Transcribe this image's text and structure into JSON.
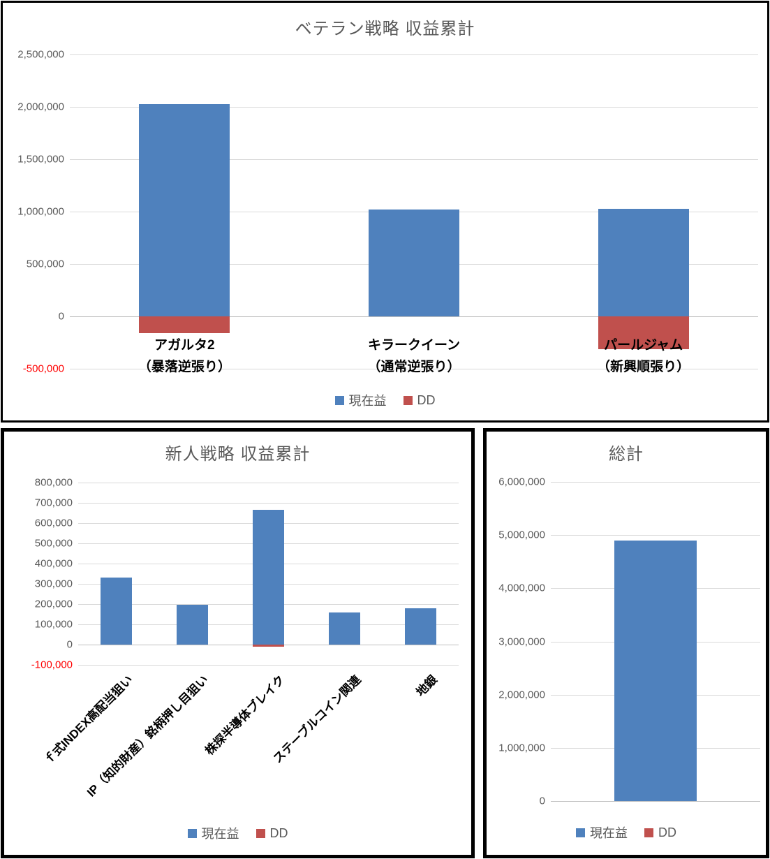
{
  "colors": {
    "profit": "#4F81BD",
    "dd": "#C0504D",
    "grid": "#D9D9D9",
    "axis": "#BFBFBF",
    "tick_text": "#595959",
    "negative_tick": "#FF0000",
    "title_text": "#595959",
    "category_text": "#000000",
    "chart_border": "#000000",
    "background": "#FFFFFF"
  },
  "chart_data": [
    {
      "type": "bar",
      "title": "ベテラン戦略 収益累計",
      "legend_position": "bottom",
      "grid": true,
      "ylim": [
        -500000,
        2500000
      ],
      "yticks": [
        {
          "v": 2500000,
          "label": "2,500,000"
        },
        {
          "v": 2000000,
          "label": "2,000,000"
        },
        {
          "v": 1500000,
          "label": "1,500,000"
        },
        {
          "v": 1000000,
          "label": "1,000,000"
        },
        {
          "v": 500000,
          "label": "500,000"
        },
        {
          "v": 0,
          "label": "0"
        },
        {
          "v": -500000,
          "label": "-500,000"
        }
      ],
      "categories": [
        [
          "アガルタ2",
          "（暴落逆張り）"
        ],
        [
          "キラークイーン",
          "（通常逆張り）"
        ],
        [
          "パールジャム",
          "（新興順張り）"
        ]
      ],
      "series": [
        {
          "name": "現在益",
          "color": "#4F81BD",
          "values": [
            2030000,
            1020000,
            1030000
          ]
        },
        {
          "name": "DD",
          "color": "#C0504D",
          "values": [
            -160000,
            0,
            -310000
          ]
        }
      ]
    },
    {
      "type": "bar",
      "title": "新人戦略 収益累計",
      "legend_position": "bottom",
      "grid": true,
      "ylim": [
        -100000,
        800000
      ],
      "yticks": [
        {
          "v": 800000,
          "label": "800,000"
        },
        {
          "v": 700000,
          "label": "700,000"
        },
        {
          "v": 600000,
          "label": "600,000"
        },
        {
          "v": 500000,
          "label": "500,000"
        },
        {
          "v": 400000,
          "label": "400,000"
        },
        {
          "v": 300000,
          "label": "300,000"
        },
        {
          "v": 200000,
          "label": "200,000"
        },
        {
          "v": 100000,
          "label": "100,000"
        },
        {
          "v": 0,
          "label": "0"
        },
        {
          "v": -100000,
          "label": "-100,000"
        }
      ],
      "categories": [
        "ｆ式INDEX高配当狙い",
        "IP（知的財産）銘柄押し目狙い",
        "株探半導体ブレイク",
        "ステーブルコイン関連",
        "地銀"
      ],
      "series": [
        {
          "name": "現在益",
          "color": "#4F81BD",
          "values": [
            330000,
            195000,
            665000,
            160000,
            180000
          ]
        },
        {
          "name": "DD",
          "color": "#C0504D",
          "values": [
            0,
            0,
            -10000,
            0,
            0
          ]
        }
      ]
    },
    {
      "type": "bar",
      "title": "総計",
      "legend_position": "bottom",
      "grid": true,
      "ylim": [
        0,
        6000000
      ],
      "yticks": [
        {
          "v": 6000000,
          "label": "6,000,000"
        },
        {
          "v": 5000000,
          "label": "5,000,000"
        },
        {
          "v": 4000000,
          "label": "4,000,000"
        },
        {
          "v": 3000000,
          "label": "3,000,000"
        },
        {
          "v": 2000000,
          "label": "2,000,000"
        },
        {
          "v": 1000000,
          "label": "1,000,000"
        },
        {
          "v": 0,
          "label": "0"
        }
      ],
      "categories": [
        ""
      ],
      "series": [
        {
          "name": "現在益",
          "color": "#4F81BD",
          "values": [
            4900000
          ]
        },
        {
          "name": "DD",
          "color": "#C0504D",
          "values": [
            0
          ]
        }
      ]
    }
  ]
}
